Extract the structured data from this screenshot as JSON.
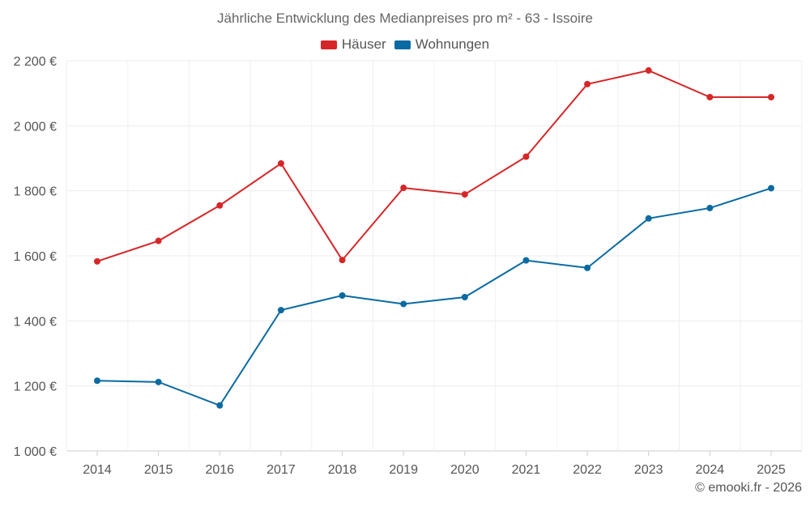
{
  "chart_data": {
    "type": "line",
    "title": "Jährliche Entwicklung des Medianpreises pro m² - 63 - Issoire",
    "xlabel": "",
    "ylabel": "",
    "categories": [
      "2014",
      "2015",
      "2016",
      "2017",
      "2018",
      "2019",
      "2020",
      "2021",
      "2022",
      "2023",
      "2024",
      "2025"
    ],
    "ylim": [
      1000,
      2200
    ],
    "yticks": [
      1000,
      1200,
      1400,
      1600,
      1800,
      2000,
      2200
    ],
    "ytick_labels": [
      "1 000 €",
      "1 200 €",
      "1 400 €",
      "1 600 €",
      "1 800 €",
      "2 000 €",
      "2 200 €"
    ],
    "grid": true,
    "legend_position": "top-center",
    "series": [
      {
        "name": "Häuser",
        "color": "#d62728",
        "values": [
          1583,
          1646,
          1755,
          1884,
          1587,
          1809,
          1789,
          1905,
          2128,
          2170,
          2088,
          2088
        ]
      },
      {
        "name": "Wohnungen",
        "color": "#0a6aa1",
        "values": [
          1216,
          1212,
          1140,
          1433,
          1478,
          1452,
          1473,
          1586,
          1563,
          1715,
          1747,
          1808
        ]
      }
    ]
  },
  "credit": "© emooki.fr - 2026"
}
